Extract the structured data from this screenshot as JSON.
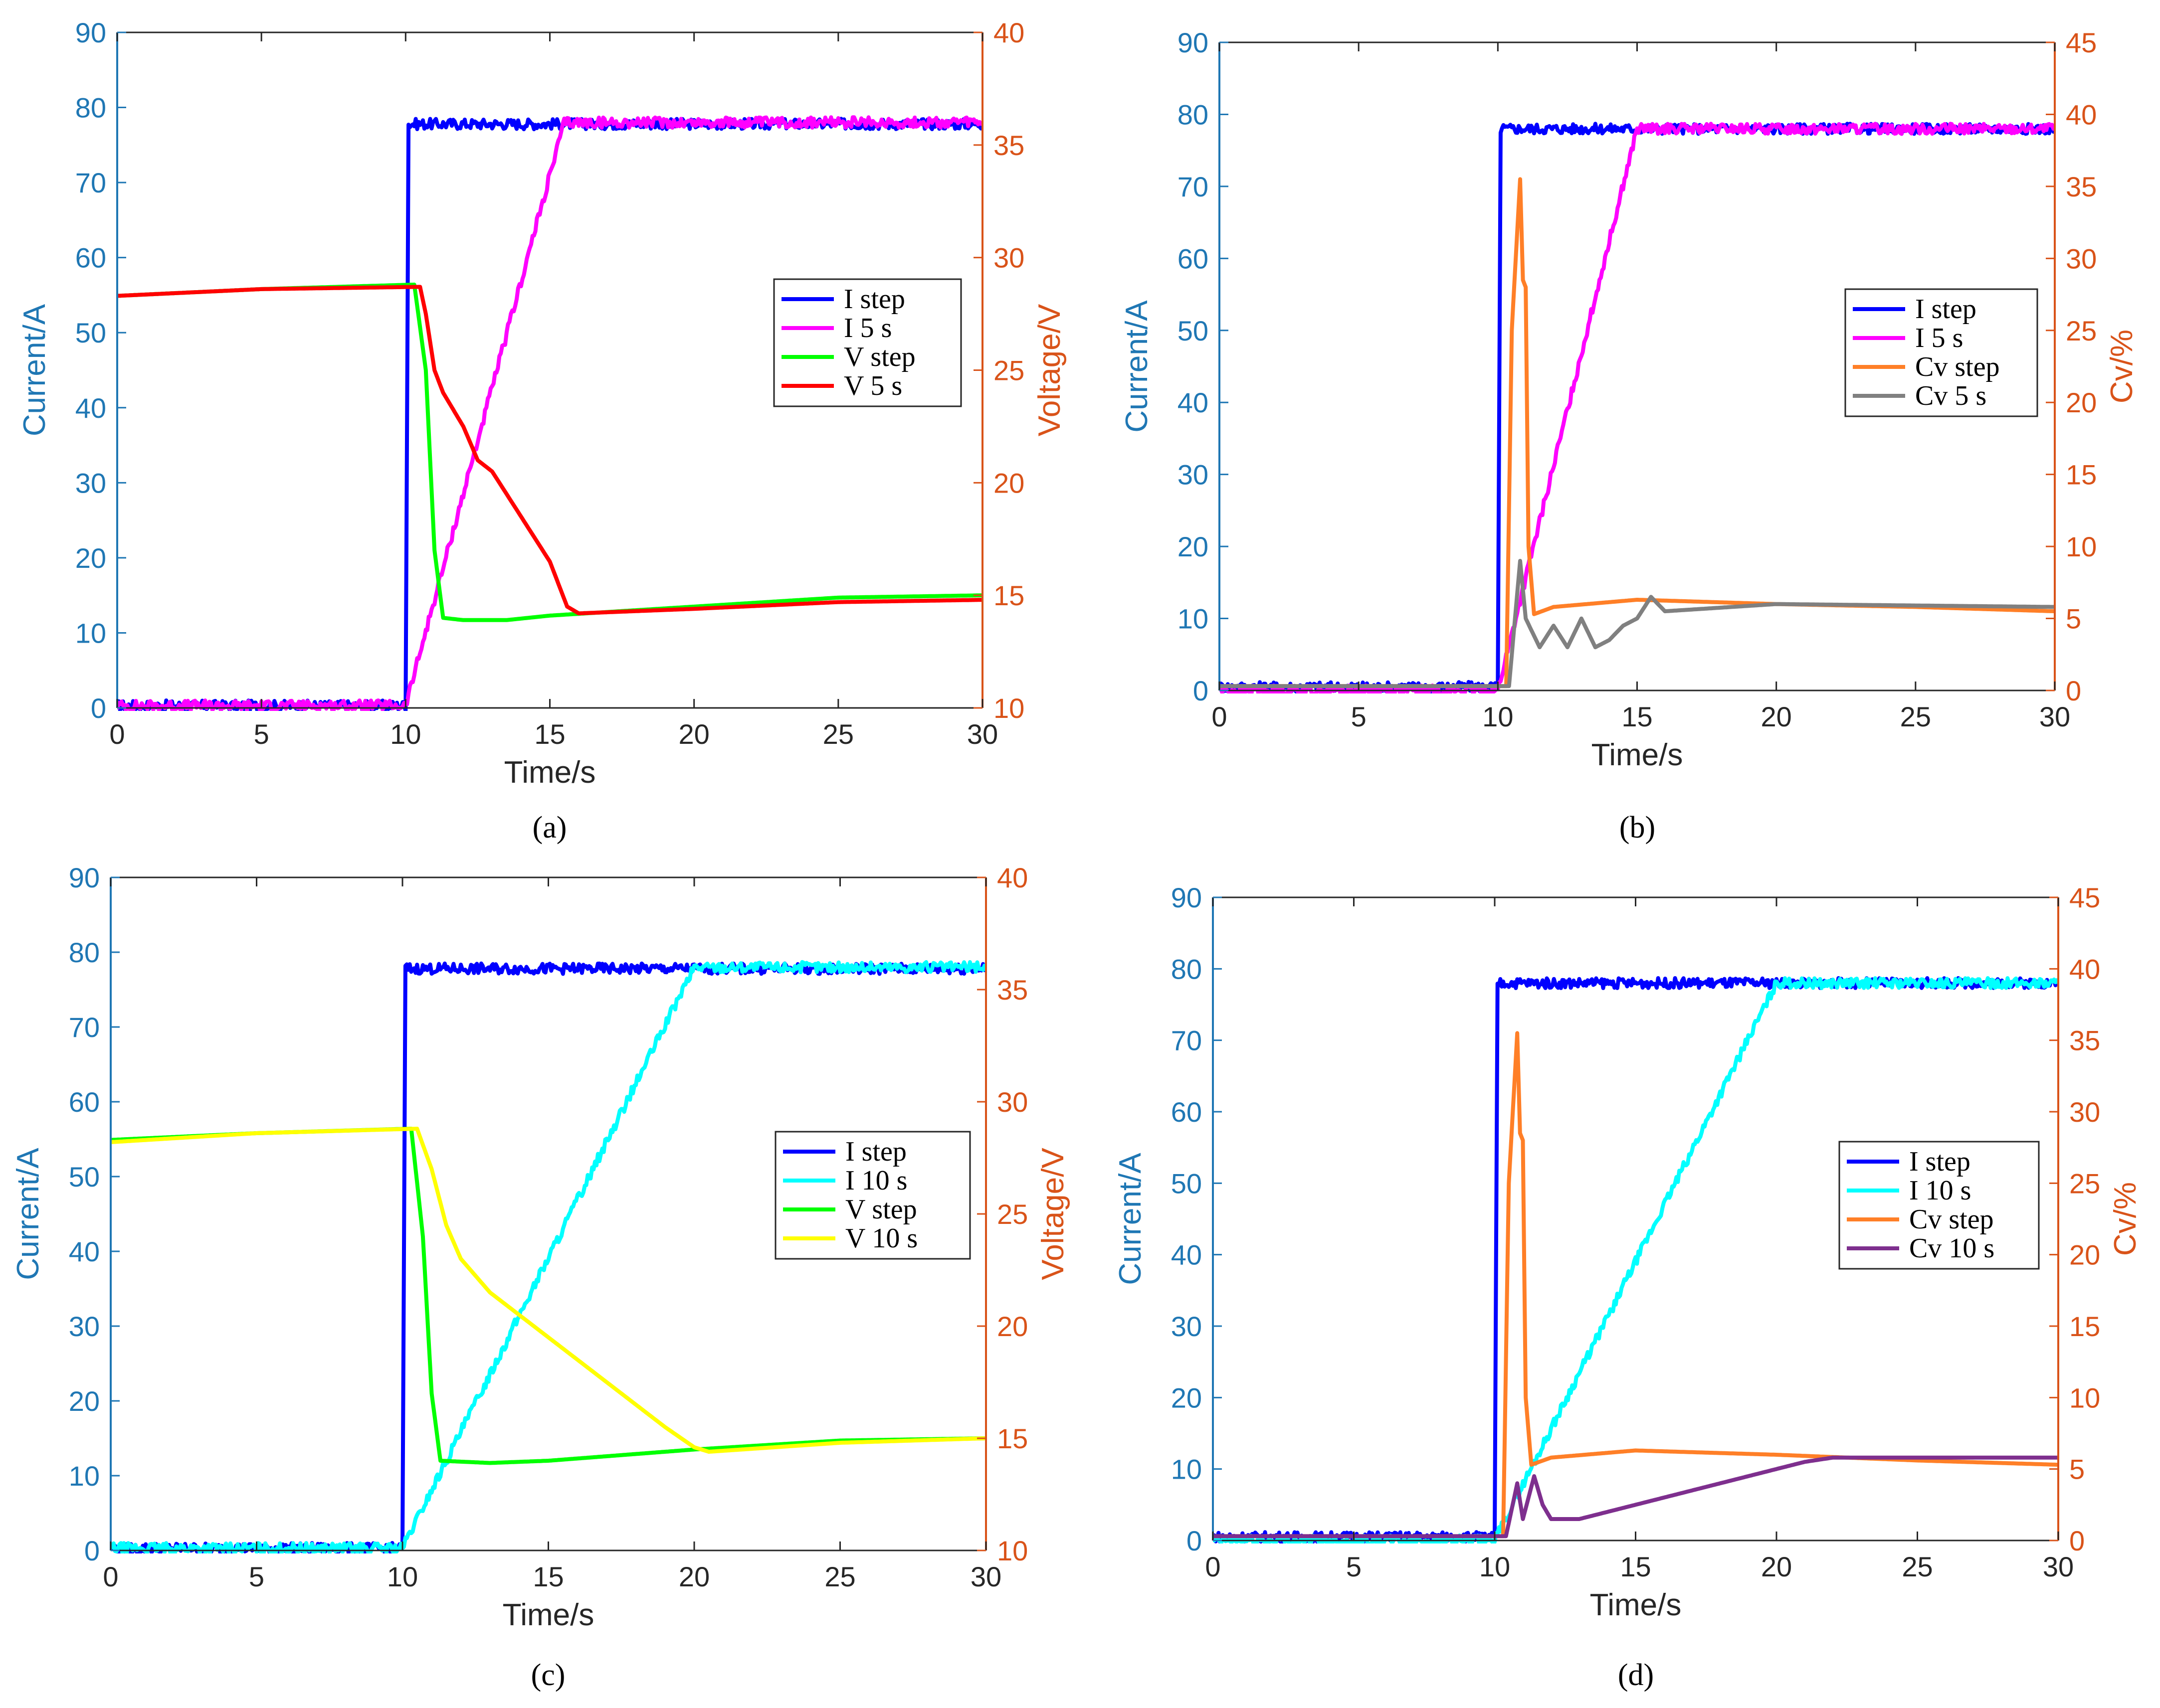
{
  "colors": {
    "left_axis": "#1f77b4",
    "right_axis": "#d95319",
    "I_step": "#0000ff",
    "I_5s": "#ff00ff",
    "I_10s": "#00ffff",
    "V_step": "#00ff00",
    "V_5s": "#ff0000",
    "V_10s": "#ffff00",
    "Cv_step": "#ff7f27",
    "Cv_5s": "#808080",
    "Cv_10s": "#7e2f8e"
  },
  "chart_data": [
    {
      "id": "a",
      "type": "line",
      "caption": "(a)",
      "xlabel": "Time/s",
      "ylabel_left": "Current/A",
      "ylabel_right": "Voltage/V",
      "xlim": [
        0,
        30
      ],
      "ylim_left": [
        0,
        90
      ],
      "ylim_right": [
        10,
        40
      ],
      "xticks": [
        "0",
        "5",
        "10",
        "15",
        "20",
        "25",
        "30"
      ],
      "yticks_left": [
        "0",
        "10",
        "20",
        "30",
        "40",
        "50",
        "60",
        "70",
        "80",
        "90"
      ],
      "yticks_right": [
        "10",
        "15",
        "20",
        "25",
        "30",
        "35",
        "40"
      ],
      "legend": [
        "I step",
        "I 5 s",
        "V step",
        "V 5 s"
      ],
      "series": [
        {
          "name": "I step",
          "axis": "left",
          "color": "I_step",
          "x": [
            0,
            10,
            10.1,
            30
          ],
          "y": [
            0.3,
            0.3,
            77.8,
            77.8
          ]
        },
        {
          "name": "I 5 s",
          "axis": "left",
          "color": "I_5s",
          "x": [
            0,
            10,
            15.5,
            30
          ],
          "y": [
            0.3,
            0.3,
            78,
            78
          ]
        },
        {
          "name": "V step",
          "axis": "right",
          "color": "V_step",
          "x": [
            0,
            5,
            10.3,
            10.7,
            11.0,
            11.3,
            12,
            13.5,
            15,
            20,
            25,
            30
          ],
          "y": [
            28.3,
            28.6,
            28.8,
            25,
            17,
            14,
            13.9,
            13.9,
            14.1,
            14.5,
            14.9,
            15.0
          ]
        },
        {
          "name": "V 5 s",
          "axis": "right",
          "color": "V_5s",
          "x": [
            0,
            5,
            10.5,
            10.7,
            11,
            11.3,
            12,
            12.5,
            13,
            14,
            15,
            15.6,
            16,
            20,
            25,
            30
          ],
          "y": [
            28.3,
            28.6,
            28.7,
            27.5,
            25,
            24,
            22.5,
            21,
            20.5,
            18.5,
            16.5,
            14.5,
            14.2,
            14.4,
            14.7,
            14.8
          ]
        }
      ]
    },
    {
      "id": "b",
      "type": "line",
      "caption": "(b)",
      "xlabel": "Time/s",
      "ylabel_left": "Current/A",
      "ylabel_right": "Cv/%",
      "xlim": [
        0,
        30
      ],
      "ylim_left": [
        0,
        90
      ],
      "ylim_right": [
        0,
        45
      ],
      "xticks": [
        "0",
        "5",
        "10",
        "15",
        "20",
        "25",
        "30"
      ],
      "yticks_left": [
        "0",
        "10",
        "20",
        "30",
        "40",
        "50",
        "60",
        "70",
        "80",
        "90"
      ],
      "yticks_right": [
        "0",
        "5",
        "10",
        "15",
        "20",
        "25",
        "30",
        "35",
        "40",
        "45"
      ],
      "legend": [
        "I step",
        "I 5 s",
        "Cv step",
        "Cv 5 s"
      ],
      "series": [
        {
          "name": "I step",
          "axis": "left",
          "color": "I_step",
          "x": [
            0,
            10,
            10.1,
            30
          ],
          "y": [
            0.5,
            0.5,
            78,
            78
          ]
        },
        {
          "name": "I 5 s",
          "axis": "left",
          "color": "I_5s",
          "x": [
            0,
            10,
            15.0,
            30
          ],
          "y": [
            0,
            0,
            78,
            78
          ]
        },
        {
          "name": "Cv step",
          "axis": "right",
          "color": "Cv_step",
          "x": [
            0,
            10.3,
            10.5,
            10.8,
            10.9,
            11.0,
            11.1,
            11.3,
            12,
            15,
            20,
            25,
            30
          ],
          "y": [
            0.3,
            0.3,
            25,
            35.5,
            28.5,
            28,
            10,
            5.3,
            5.8,
            6.3,
            6.0,
            5.8,
            5.5
          ]
        },
        {
          "name": "Cv 5 s",
          "axis": "right",
          "color": "Cv_5s",
          "x": [
            0,
            10.4,
            10.8,
            11.0,
            11.5,
            12,
            12.5,
            13,
            13.5,
            14,
            14.5,
            15,
            15.5,
            16,
            20,
            30
          ],
          "y": [
            0.3,
            0.3,
            9,
            5,
            3,
            4.5,
            3,
            5,
            3,
            3.5,
            4.5,
            5,
            6.5,
            5.5,
            6,
            5.8
          ]
        }
      ]
    },
    {
      "id": "c",
      "type": "line",
      "caption": "(c)",
      "xlabel": "Time/s",
      "ylabel_left": "Current/A",
      "ylabel_right": "Voltage/V",
      "xlim": [
        0,
        30
      ],
      "ylim_left": [
        0,
        90
      ],
      "ylim_right": [
        10,
        40
      ],
      "xticks": [
        "0",
        "5",
        "10",
        "15",
        "20",
        "25",
        "30"
      ],
      "yticks_left": [
        "0",
        "10",
        "20",
        "30",
        "40",
        "50",
        "60",
        "70",
        "80",
        "90"
      ],
      "yticks_right": [
        "10",
        "15",
        "20",
        "25",
        "30",
        "35",
        "40"
      ],
      "legend": [
        "I step",
        "I 10 s",
        "V step",
        "V 10 s"
      ],
      "series": [
        {
          "name": "I step",
          "axis": "left",
          "color": "I_step",
          "x": [
            0,
            10,
            10.1,
            30
          ],
          "y": [
            0.3,
            0.3,
            77.8,
            77.8
          ]
        },
        {
          "name": "I 10 s",
          "axis": "left",
          "color": "I_10s",
          "x": [
            0,
            10,
            20,
            30
          ],
          "y": [
            0.3,
            0.3,
            78,
            78
          ]
        },
        {
          "name": "V step",
          "axis": "right",
          "color": "V_step",
          "x": [
            0,
            5,
            10.3,
            10.7,
            11.0,
            11.3,
            13,
            15,
            20,
            25,
            30
          ],
          "y": [
            28.3,
            28.6,
            28.8,
            24,
            17,
            14,
            13.9,
            14.0,
            14.5,
            14.9,
            15.0
          ]
        },
        {
          "name": "V 10 s",
          "axis": "right",
          "color": "V_10s",
          "x": [
            0,
            5,
            10.5,
            11,
            11.5,
            12,
            13,
            15,
            17,
            19,
            20,
            20.5,
            25,
            30
          ],
          "y": [
            28.2,
            28.6,
            28.8,
            27,
            24.5,
            23,
            21.5,
            19.5,
            17.5,
            15.5,
            14.6,
            14.4,
            14.8,
            15.0
          ]
        }
      ]
    },
    {
      "id": "d",
      "type": "line",
      "caption": "(d)",
      "xlabel": "Time/s",
      "ylabel_left": "Current/A",
      "ylabel_right": "Cv/%",
      "xlim": [
        0,
        30
      ],
      "ylim_left": [
        0,
        90
      ],
      "ylim_right": [
        0,
        45
      ],
      "xticks": [
        "0",
        "5",
        "10",
        "15",
        "20",
        "25",
        "30"
      ],
      "yticks_left": [
        "0",
        "10",
        "20",
        "30",
        "40",
        "50",
        "60",
        "70",
        "80",
        "90"
      ],
      "yticks_right": [
        "0",
        "5",
        "10",
        "15",
        "20",
        "25",
        "30",
        "35",
        "40",
        "45"
      ],
      "legend": [
        "I step",
        "I 10 s",
        "Cv step",
        "Cv 10 s"
      ],
      "series": [
        {
          "name": "I step",
          "axis": "left",
          "color": "I_step",
          "x": [
            0,
            10,
            10.1,
            30
          ],
          "y": [
            0.5,
            0.5,
            78,
            78
          ]
        },
        {
          "name": "I 10 s",
          "axis": "left",
          "color": "I_10s",
          "x": [
            0,
            10,
            20,
            30
          ],
          "y": [
            0,
            0,
            78,
            78
          ]
        },
        {
          "name": "Cv step",
          "axis": "right",
          "color": "Cv_step",
          "x": [
            0,
            10.3,
            10.5,
            10.8,
            10.9,
            11.0,
            11.1,
            11.3,
            12,
            15,
            20,
            25,
            30
          ],
          "y": [
            0.3,
            0.3,
            25,
            35.5,
            28.5,
            28,
            10,
            5.3,
            5.8,
            6.3,
            6.0,
            5.6,
            5.3
          ]
        },
        {
          "name": "Cv 10 s",
          "axis": "right",
          "color": "Cv_10s",
          "x": [
            0,
            10.4,
            10.8,
            11.0,
            11.4,
            11.7,
            12,
            13,
            14,
            15,
            16,
            17,
            18,
            19,
            20,
            21,
            22,
            25,
            30
          ],
          "y": [
            0.3,
            0.3,
            4,
            1.5,
            4.5,
            2.5,
            1.5,
            1.5,
            2,
            2.5,
            3,
            3.5,
            4,
            4.5,
            5,
            5.5,
            5.8,
            5.8,
            5.8
          ]
        }
      ]
    }
  ]
}
